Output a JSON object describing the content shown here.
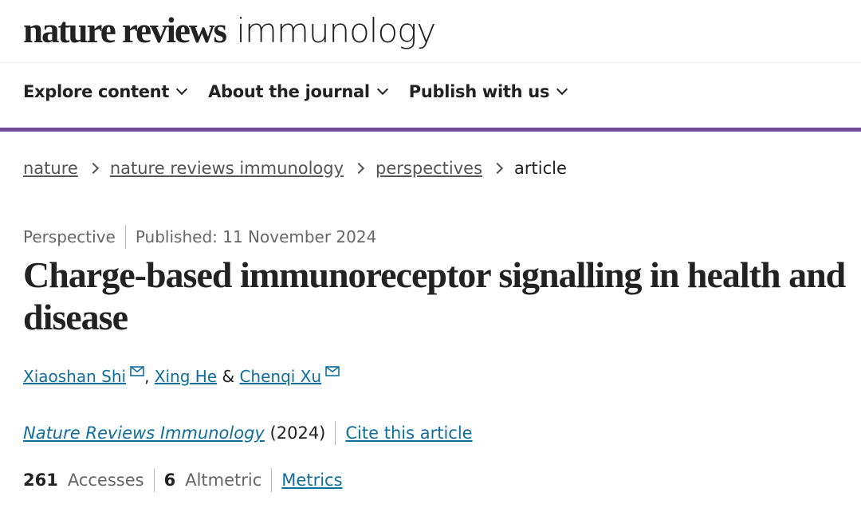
{
  "header": {
    "logo_bold": "nature reviews",
    "logo_light": "immunology"
  },
  "nav": [
    {
      "label": "Explore content"
    },
    {
      "label": "About the journal"
    },
    {
      "label": "Publish with us"
    }
  ],
  "breadcrumb": [
    "nature",
    "nature reviews immunology",
    "perspectives",
    "article"
  ],
  "article": {
    "type": "Perspective",
    "published": "Published: 11 November 2024",
    "title": "Charge-based immunoreceptor signalling in health and disease",
    "authors": [
      {
        "name": "Xiaoshan Shi",
        "email": true
      },
      {
        "name": "Xing He",
        "email": false
      },
      {
        "name": "Chenqi Xu",
        "email": true
      }
    ],
    "author_sep1": ",",
    "author_sep2": "&",
    "journal": "Nature Reviews Immunology",
    "year": "(2024)",
    "cite_label": "Cite this article",
    "accesses_count": "261",
    "accesses_label": "Accesses",
    "altmetric_count": "6",
    "altmetric_label": "Altmetric",
    "metrics_label": "Metrics"
  },
  "colors": {
    "accent": "#6f4c9b",
    "link": "#0f6e9e"
  }
}
